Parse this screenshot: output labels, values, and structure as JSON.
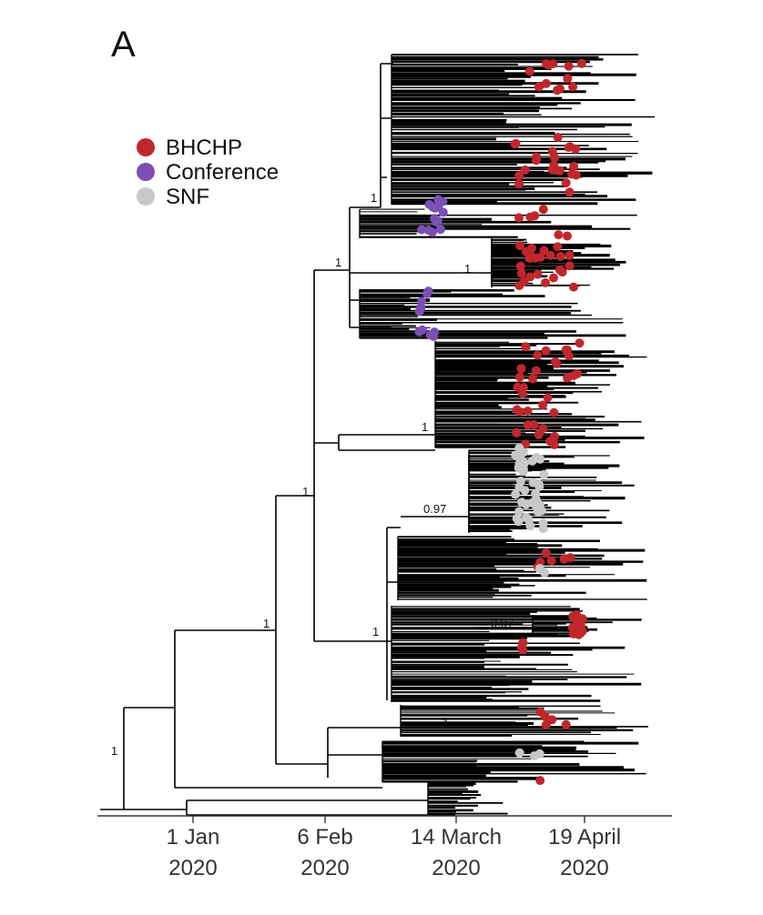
{
  "figure": {
    "panel_label": "A"
  },
  "legend": {
    "items": [
      {
        "label": "BHCHP",
        "color": "#c0272d"
      },
      {
        "label": "Conference",
        "color": "#7b4fb5"
      },
      {
        "label": "SNF",
        "color": "#c8c8c8"
      }
    ]
  },
  "node_support": [
    "1",
    "1",
    "1",
    "1",
    "0.97",
    "1",
    "1",
    "0.97",
    "1",
    "1",
    "1"
  ],
  "axis": {
    "ticks": [
      {
        "line1": "1 Jan",
        "line2": "2020"
      },
      {
        "line1": "6 Feb",
        "line2": "2020"
      },
      {
        "line1": "14 March",
        "line2": "2020"
      },
      {
        "line1": "19 April",
        "line2": "2020"
      }
    ]
  },
  "colors": {
    "tree": "#000000",
    "bhchp": "#c0272d",
    "conference": "#7b4fb5",
    "snf": "#c8c8c8"
  }
}
